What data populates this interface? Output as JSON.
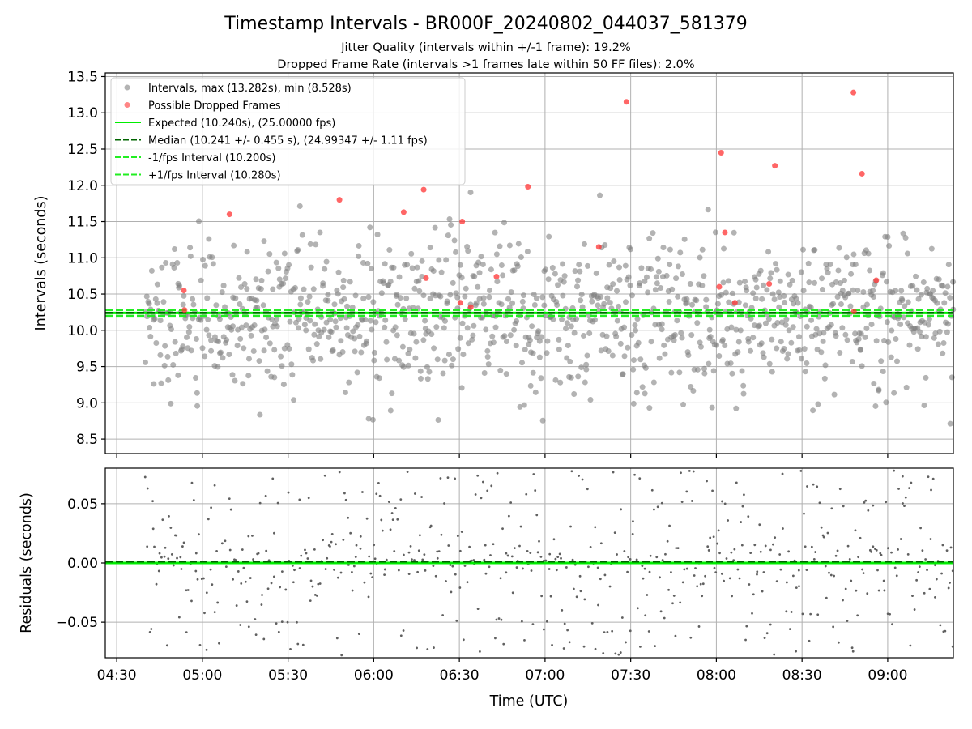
{
  "chart_data": [
    {
      "type": "scatter",
      "title": "Timestamp Intervals - BR000F_20240802_044037_581379",
      "subtitle_lines": [
        "Jitter Quality (intervals within +/-1 frame): 19.2%",
        "Dropped Frame Rate (intervals >1 frames late within 50 FF files): 2.0%"
      ],
      "xlabel": "",
      "ylabel": "Intervals (seconds)",
      "xlim": [
        "04:26:00",
        "09:23:00"
      ],
      "ylim": [
        8.3,
        13.55
      ],
      "y_ticks": [
        "8.5",
        "9.0",
        "9.5",
        "10.0",
        "10.5",
        "11.0",
        "11.5",
        "12.0",
        "12.5",
        "13.0",
        "13.5"
      ],
      "grid": true,
      "legend_position": "top-left",
      "colors": {
        "intervals": "#808080",
        "dropped": "#ff3333",
        "expected": "#00ee00",
        "median": "#006400",
        "bounds": "#22ee22"
      },
      "legend": [
        "Intervals, max (13.282s), min (8.528s)",
        "Possible Dropped Frames",
        "Expected (10.240s), (25.00000 fps)",
        "Median (10.241 +/- 0.455 s), (24.99347 +/- 1.11 fps)",
        "-1/fps Interval (10.200s)",
        "+1/fps Interval (10.280s)"
      ],
      "reference_lines": {
        "expected": 10.24,
        "median": 10.241,
        "minus_one_fps": 10.2,
        "plus_one_fps": 10.28
      },
      "interval_series": {
        "name": "Intervals, max (13.282s), min (8.528s)",
        "count": 1100,
        "start": "04:40:00",
        "end": "09:23:00",
        "median": 10.241,
        "spread": 0.455,
        "max": 13.282,
        "min": 8.528
      },
      "dropped_frames": {
        "name": "Possible Dropped Frames",
        "x": [
          "04:53:30",
          "04:53:45",
          "05:09:30",
          "05:48:00",
          "06:10:30",
          "06:17:30",
          "06:18:20",
          "06:30:20",
          "06:31:00",
          "06:34:00",
          "06:43:00",
          "06:54:00",
          "07:18:50",
          "07:28:30",
          "08:01:00",
          "08:01:40",
          "08:03:00",
          "08:06:30",
          "08:18:30",
          "08:20:30",
          "08:48:00",
          "08:48:10",
          "08:51:00",
          "08:56:00"
        ],
        "y": [
          10.55,
          10.28,
          11.6,
          11.8,
          11.63,
          11.94,
          10.72,
          10.38,
          11.5,
          10.32,
          10.74,
          11.98,
          11.15,
          13.15,
          10.6,
          12.45,
          11.35,
          10.38,
          10.64,
          12.27,
          13.28,
          10.26,
          12.16,
          10.69
        ]
      }
    },
    {
      "type": "scatter",
      "title": "",
      "xlabel": "Time (UTC)",
      "ylabel": "Residuals (seconds)",
      "xlim": [
        "04:26:00",
        "09:23:00"
      ],
      "ylim": [
        -0.08,
        0.08
      ],
      "y_ticks": [
        "−0.05",
        "0.00",
        "0.05"
      ],
      "x_ticks": [
        "04:30",
        "05:00",
        "05:30",
        "06:00",
        "06:30",
        "07:00",
        "07:30",
        "08:00",
        "08:30",
        "09:00"
      ],
      "grid": true,
      "reference_lines": {
        "zero": 0.0,
        "median_offset": 0.001
      },
      "residual_series": {
        "count": 600,
        "start": "04:40:00",
        "end": "09:23:00",
        "range": [
          -0.08,
          0.08
        ]
      }
    }
  ]
}
